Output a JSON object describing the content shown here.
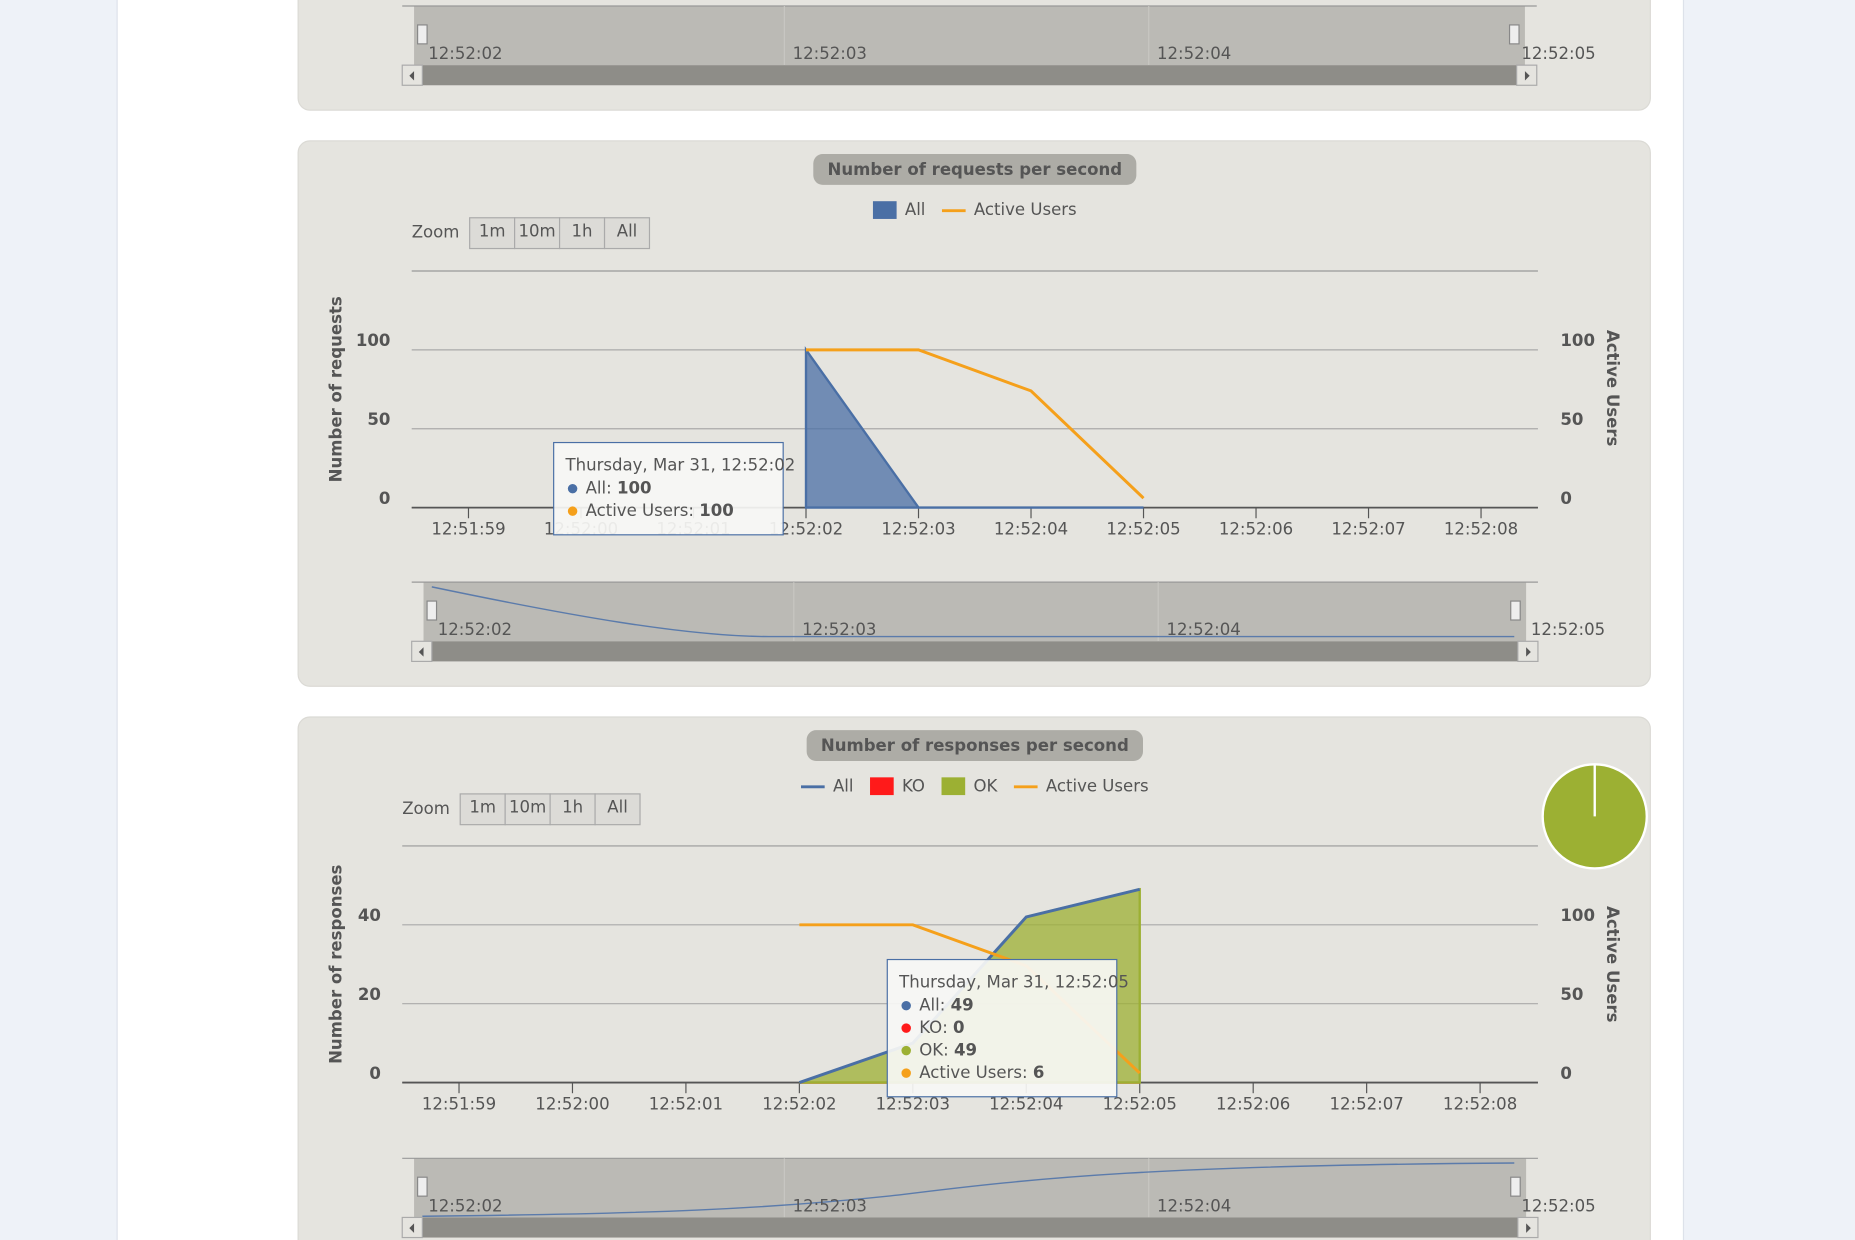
{
  "top_navigator": [
    "12:52:02",
    "12:52:03",
    "12:52:04",
    "12:52:05"
  ],
  "zoom": {
    "label": "Zoom",
    "buttons": [
      "1m",
      "10m",
      "1h",
      "All"
    ]
  },
  "chart_data": [
    {
      "type": "area",
      "title": "Number of requests per second",
      "categories": [
        "12:51:59",
        "12:52:00",
        "12:52:01",
        "12:52:02",
        "12:52:03",
        "12:52:04",
        "12:52:05",
        "12:52:06",
        "12:52:07",
        "12:52:08"
      ],
      "series": [
        {
          "name": "All",
          "color": "#4a6fa5",
          "style": "area",
          "values": [
            null,
            null,
            null,
            100,
            0,
            0,
            0,
            null,
            null,
            null
          ]
        },
        {
          "name": "Active Users",
          "color": "#f5a01b",
          "style": "line",
          "axis": "y2",
          "values": [
            null,
            null,
            null,
            100,
            100,
            74,
            6,
            null,
            null,
            null
          ]
        }
      ],
      "ylabel": "Number of requests",
      "y2label": "Active Users",
      "ylim": [
        0,
        150
      ],
      "yticks": [
        0,
        50,
        100
      ],
      "y2lim": [
        0,
        150
      ],
      "y2ticks": [
        0,
        50,
        100
      ],
      "grid": true,
      "tooltip": "Thursday, Mar 31, 12:52:02",
      "navigator": [
        "12:52:02",
        "12:52:03",
        "12:52:04",
        "12:52:05"
      ]
    },
    {
      "type": "area",
      "title": "Number of responses per second",
      "categories": [
        "12:51:59",
        "12:52:00",
        "12:52:01",
        "12:52:02",
        "12:52:03",
        "12:52:04",
        "12:52:05",
        "12:52:06",
        "12:52:07",
        "12:52:08"
      ],
      "series": [
        {
          "name": "All",
          "color": "#4a6fa5",
          "style": "line",
          "values": [
            null,
            null,
            null,
            0,
            10,
            42,
            49,
            null,
            null,
            null
          ]
        },
        {
          "name": "KO",
          "color": "#ff1a1a",
          "style": "area",
          "values": [
            null,
            null,
            null,
            0,
            0,
            0,
            0,
            null,
            null,
            null
          ]
        },
        {
          "name": "OK",
          "color": "#9cb033",
          "style": "area",
          "values": [
            null,
            null,
            null,
            0,
            10,
            42,
            49,
            null,
            null,
            null
          ]
        },
        {
          "name": "Active Users",
          "color": "#f5a01b",
          "style": "line",
          "axis": "y2",
          "values": [
            null,
            null,
            null,
            100,
            100,
            74,
            6,
            null,
            null,
            null
          ]
        }
      ],
      "ylabel": "Number of responses",
      "y2label": "Active Users",
      "ylim": [
        0,
        60
      ],
      "yticks": [
        0,
        20,
        40
      ],
      "y2lim": [
        0,
        150
      ],
      "y2ticks": [
        0,
        50,
        100
      ],
      "grid": true,
      "tooltip": "Thursday, Mar 31, 12:52:05",
      "navigator": [
        "12:52:02",
        "12:52:03",
        "12:52:04",
        "12:52:05"
      ]
    }
  ]
}
